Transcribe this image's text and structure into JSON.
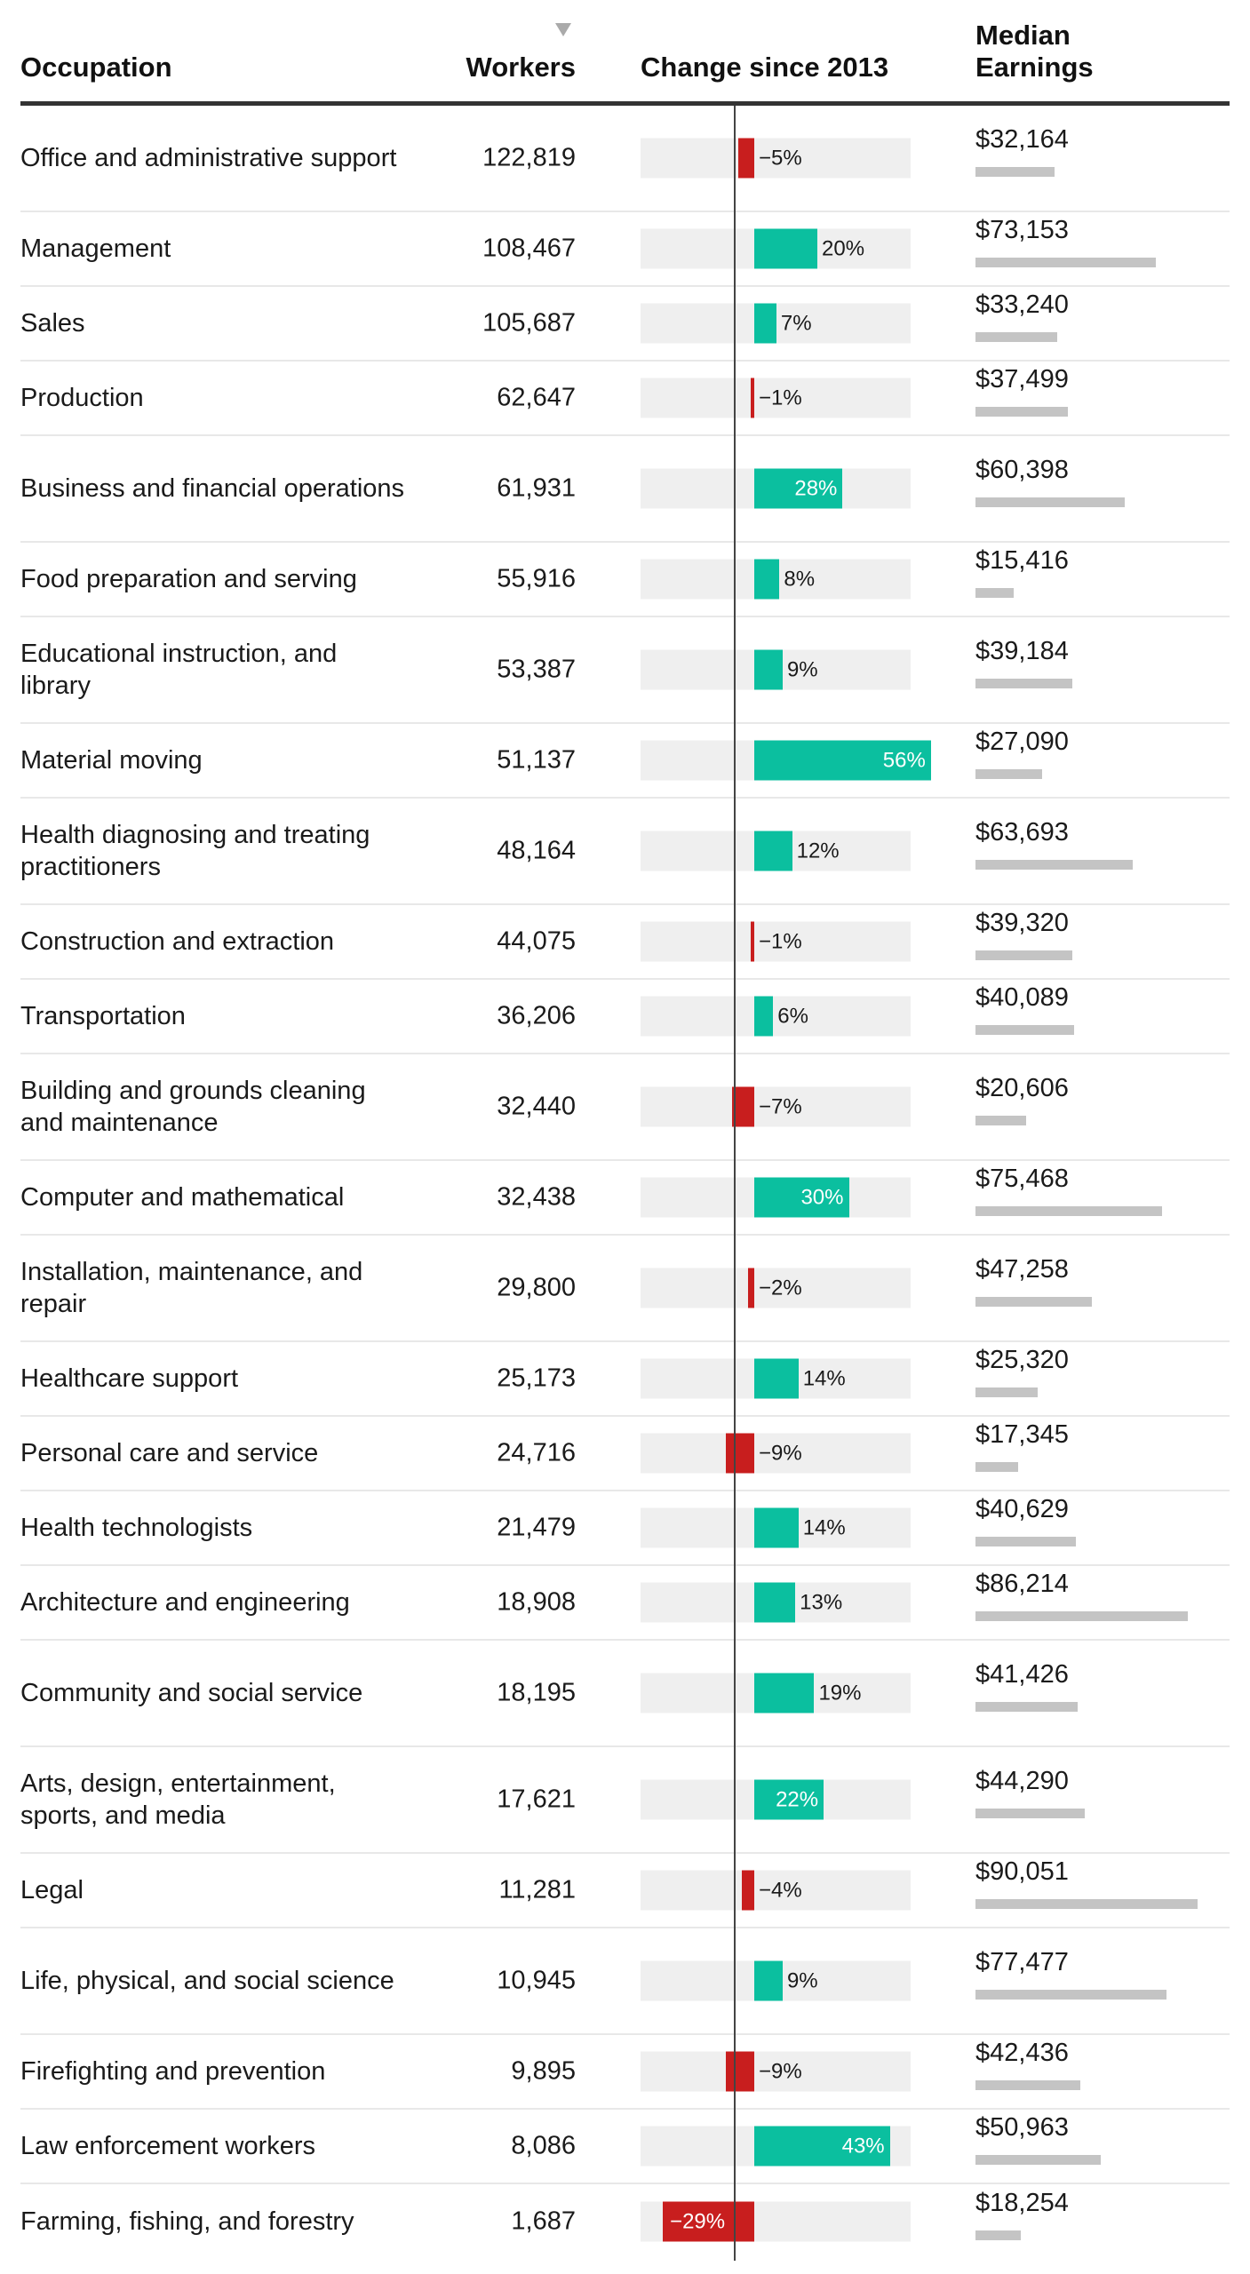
{
  "chart_data": {
    "type": "table",
    "columns": [
      "Occupation",
      "Workers",
      "Change since 2013",
      "Median Earnings"
    ],
    "sort": {
      "column": "Workers",
      "direction": "descending"
    },
    "change_range": [
      -29,
      56
    ],
    "colors": {
      "positive": "#0bbf9f",
      "negative": "#c81e1e",
      "track": "#efefef",
      "earnings_bar": "#c4c4c4"
    },
    "rows": [
      {
        "occupation": "Office and administrative support",
        "workers": "122,819",
        "change": -5,
        "change_label": "−5%",
        "earnings": 32164,
        "earnings_label": "$32,164"
      },
      {
        "occupation": "Management",
        "workers": "108,467",
        "change": 20,
        "change_label": "20%",
        "earnings": 73153,
        "earnings_label": "$73,153"
      },
      {
        "occupation": "Sales",
        "workers": "105,687",
        "change": 7,
        "change_label": "7%",
        "earnings": 33240,
        "earnings_label": "$33,240"
      },
      {
        "occupation": "Production",
        "workers": "62,647",
        "change": -1,
        "change_label": "−1%",
        "earnings": 37499,
        "earnings_label": "$37,499"
      },
      {
        "occupation": "Business and financial operations",
        "workers": "61,931",
        "change": 28,
        "change_label": "28%",
        "earnings": 60398,
        "earnings_label": "$60,398"
      },
      {
        "occupation": "Food preparation and serving",
        "workers": "55,916",
        "change": 8,
        "change_label": "8%",
        "earnings": 15416,
        "earnings_label": "$15,416"
      },
      {
        "occupation": "Educational instruction, and library",
        "workers": "53,387",
        "change": 9,
        "change_label": "9%",
        "earnings": 39184,
        "earnings_label": "$39,184"
      },
      {
        "occupation": "Material moving",
        "workers": "51,137",
        "change": 56,
        "change_label": "56%",
        "earnings": 27090,
        "earnings_label": "$27,090"
      },
      {
        "occupation": "Health diagnosing and treating practitioners",
        "workers": "48,164",
        "change": 12,
        "change_label": "12%",
        "earnings": 63693,
        "earnings_label": "$63,693"
      },
      {
        "occupation": "Construction and extraction",
        "workers": "44,075",
        "change": -1,
        "change_label": "−1%",
        "earnings": 39320,
        "earnings_label": "$39,320"
      },
      {
        "occupation": "Transportation",
        "workers": "36,206",
        "change": 6,
        "change_label": "6%",
        "earnings": 40089,
        "earnings_label": "$40,089"
      },
      {
        "occupation": "Building and grounds cleaning and maintenance",
        "workers": "32,440",
        "change": -7,
        "change_label": "−7%",
        "earnings": 20606,
        "earnings_label": "$20,606"
      },
      {
        "occupation": "Computer and mathematical",
        "workers": "32,438",
        "change": 30,
        "change_label": "30%",
        "earnings": 75468,
        "earnings_label": "$75,468"
      },
      {
        "occupation": "Installation, maintenance, and repair",
        "workers": "29,800",
        "change": -2,
        "change_label": "−2%",
        "earnings": 47258,
        "earnings_label": "$47,258"
      },
      {
        "occupation": "Healthcare support",
        "workers": "25,173",
        "change": 14,
        "change_label": "14%",
        "earnings": 25320,
        "earnings_label": "$25,320"
      },
      {
        "occupation": "Personal care and service",
        "workers": "24,716",
        "change": -9,
        "change_label": "−9%",
        "earnings": 17345,
        "earnings_label": "$17,345"
      },
      {
        "occupation": "Health technologists",
        "workers": "21,479",
        "change": 14,
        "change_label": "14%",
        "earnings": 40629,
        "earnings_label": "$40,629"
      },
      {
        "occupation": "Architecture and engineering",
        "workers": "18,908",
        "change": 13,
        "change_label": "13%",
        "earnings": 86214,
        "earnings_label": "$86,214"
      },
      {
        "occupation": "Community and social service",
        "workers": "18,195",
        "change": 19,
        "change_label": "19%",
        "earnings": 41426,
        "earnings_label": "$41,426"
      },
      {
        "occupation": "Arts, design, entertainment, sports, and media",
        "workers": "17,621",
        "change": 22,
        "change_label": "22%",
        "earnings": 44290,
        "earnings_label": "$44,290"
      },
      {
        "occupation": "Legal",
        "workers": "11,281",
        "change": -4,
        "change_label": "−4%",
        "earnings": 90051,
        "earnings_label": "$90,051"
      },
      {
        "occupation": "Life, physical, and social science",
        "workers": "10,945",
        "change": 9,
        "change_label": "9%",
        "earnings": 77477,
        "earnings_label": "$77,477"
      },
      {
        "occupation": "Firefighting and prevention",
        "workers": "9,895",
        "change": -9,
        "change_label": "−9%",
        "earnings": 42436,
        "earnings_label": "$42,436"
      },
      {
        "occupation": "Law enforcement workers",
        "workers": "8,086",
        "change": 43,
        "change_label": "43%",
        "earnings": 50963,
        "earnings_label": "$50,963"
      },
      {
        "occupation": "Farming, fishing, and forestry",
        "workers": "1,687",
        "change": -29,
        "change_label": "−29%",
        "earnings": 18254,
        "earnings_label": "$18,254"
      }
    ]
  },
  "header": {
    "occupation": "Occupation",
    "workers": "Workers",
    "change": "Change since 2013",
    "earnings": "Median Earnings"
  }
}
